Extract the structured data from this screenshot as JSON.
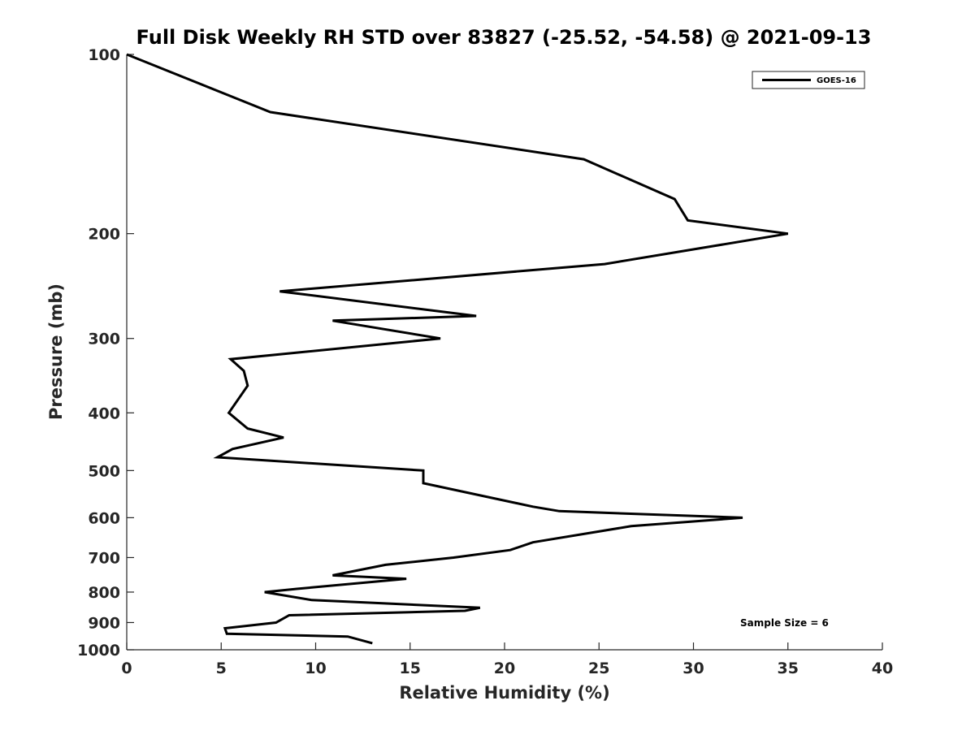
{
  "chart_data": {
    "type": "line",
    "title": "Full Disk Weekly RH STD over 83827 (-25.52, -54.58) @ 2021-09-13",
    "xlabel": "Relative Humidity (%)",
    "ylabel": "Pressure (mb)",
    "xlim": [
      0,
      40
    ],
    "ylim": [
      100,
      1000
    ],
    "y_scale": "log",
    "y_reversed": true,
    "grid": false,
    "legend_position": "top-right",
    "x_ticks": [
      0,
      5,
      10,
      15,
      20,
      25,
      30,
      35,
      40
    ],
    "y_ticks": [
      100,
      200,
      300,
      400,
      500,
      600,
      700,
      800,
      900,
      1000
    ],
    "annotation": "Sample Size = 6",
    "series": [
      {
        "name": "GOES-16",
        "color": "#000000",
        "points": [
          [
            0.0,
            100
          ],
          [
            7.6,
            125
          ],
          [
            24.2,
            150
          ],
          [
            29.0,
            175
          ],
          [
            29.7,
            190
          ],
          [
            35.0,
            200
          ],
          [
            25.3,
            225
          ],
          [
            8.1,
            250
          ],
          [
            18.5,
            275
          ],
          [
            10.9,
            280
          ],
          [
            16.6,
            300
          ],
          [
            5.5,
            325
          ],
          [
            6.2,
            340
          ],
          [
            6.4,
            360
          ],
          [
            5.4,
            400
          ],
          [
            6.4,
            425
          ],
          [
            8.3,
            440
          ],
          [
            5.6,
            460
          ],
          [
            4.8,
            475
          ],
          [
            15.7,
            500
          ],
          [
            15.7,
            525
          ],
          [
            21.5,
            575
          ],
          [
            22.9,
            585
          ],
          [
            32.6,
            600
          ],
          [
            26.7,
            620
          ],
          [
            21.5,
            660
          ],
          [
            20.3,
            680
          ],
          [
            17.3,
            700
          ],
          [
            13.7,
            720
          ],
          [
            10.9,
            750
          ],
          [
            14.8,
            760
          ],
          [
            9.0,
            790
          ],
          [
            7.3,
            800
          ],
          [
            9.8,
            825
          ],
          [
            18.7,
            850
          ],
          [
            17.9,
            860
          ],
          [
            8.6,
            875
          ],
          [
            7.9,
            900
          ],
          [
            5.2,
            920
          ],
          [
            5.3,
            940
          ],
          [
            11.7,
            950
          ],
          [
            13.0,
            975
          ]
        ]
      }
    ]
  }
}
